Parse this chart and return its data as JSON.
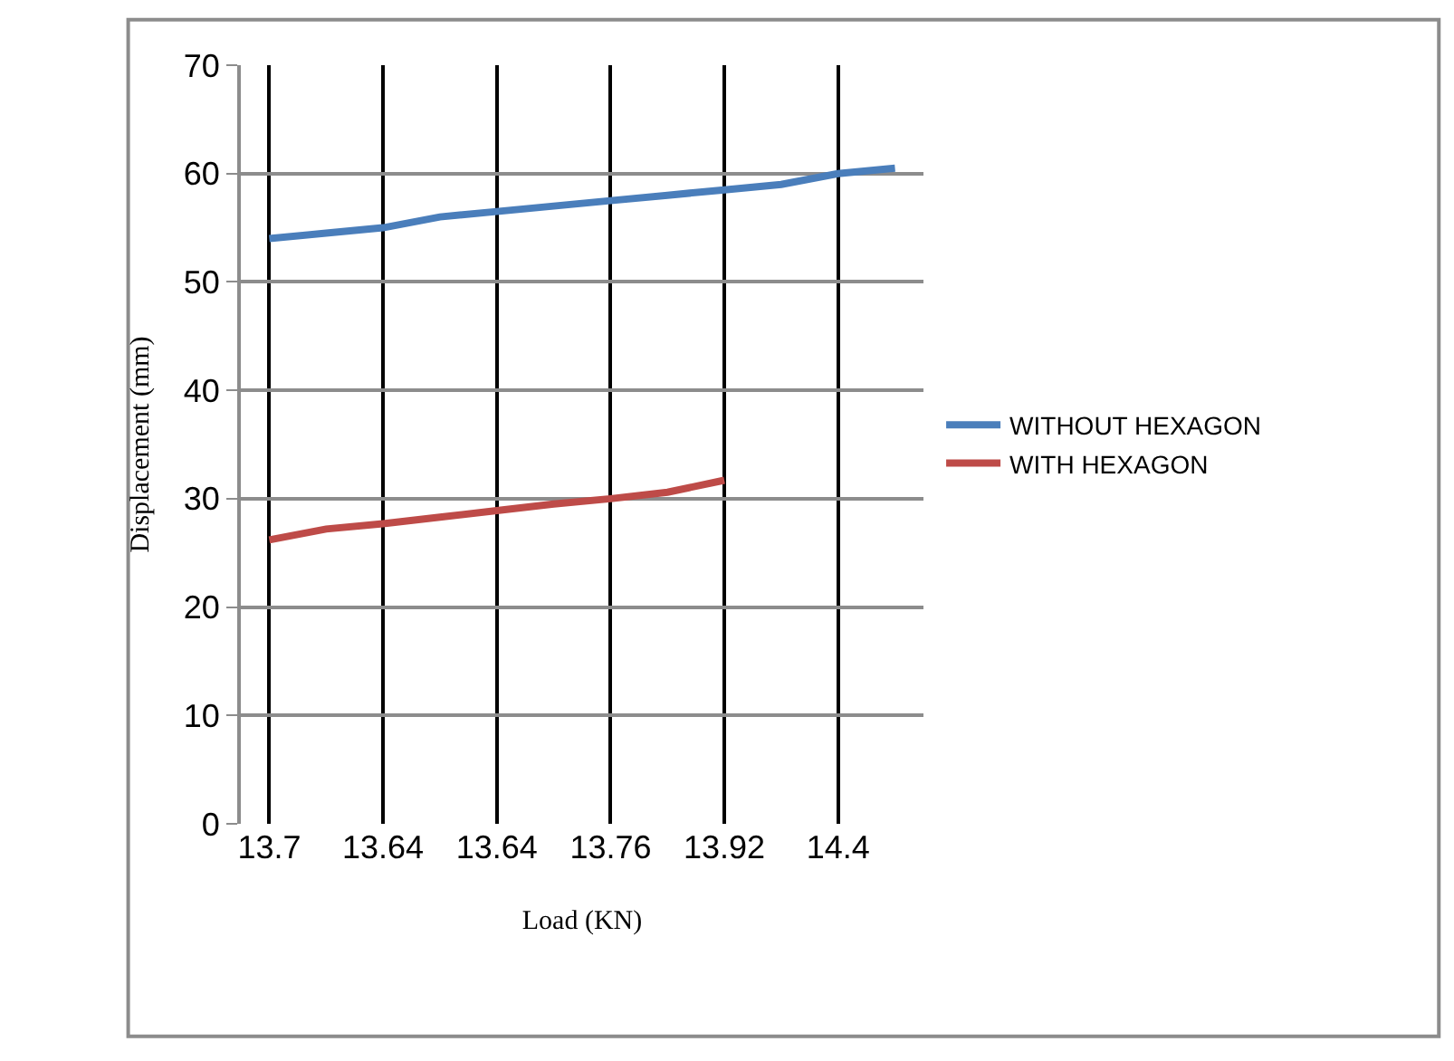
{
  "chart_data": {
    "type": "line",
    "xlabel": "Load (KN)",
    "ylabel": "Displacement (mm)",
    "categories": [
      "13.7",
      null,
      "13.64",
      null,
      "13.64",
      null,
      "13.76",
      null,
      "13.92",
      null,
      "14.4",
      null
    ],
    "series": [
      {
        "name": "WITHOUT HEXAGON",
        "color": "#4a7ebb",
        "values": [
          54,
          54.5,
          55,
          56,
          56.5,
          57,
          57.5,
          58,
          58.5,
          59,
          60,
          60.5
        ]
      },
      {
        "name": "WITH HEXAGON",
        "color": "#be4b48",
        "values": [
          26.2,
          27.2,
          27.7,
          28.3,
          28.9,
          29.5,
          30,
          30.6,
          31.7,
          null,
          null,
          null
        ]
      }
    ],
    "ylim": [
      0,
      70
    ],
    "yticks": [
      0,
      10,
      20,
      30,
      40,
      50,
      60,
      70
    ],
    "grid": true,
    "legend": "right",
    "marker": "none"
  }
}
